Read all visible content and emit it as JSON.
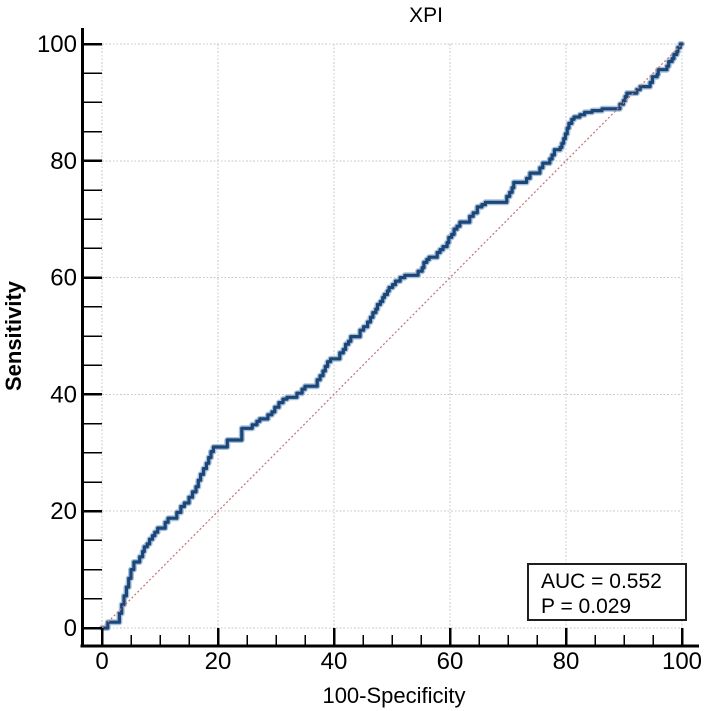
{
  "chart_data": {
    "type": "line",
    "subtype": "roc-curve",
    "title": "XPI",
    "xlabel": "100-Specificity",
    "ylabel": "Sensitivity",
    "xlim": [
      0,
      100
    ],
    "ylim": [
      0,
      100
    ],
    "x_ticks": [
      0,
      20,
      40,
      60,
      80,
      100
    ],
    "y_ticks": [
      0,
      20,
      40,
      60,
      80,
      100
    ],
    "minor_tick_interval": 5,
    "grid": true,
    "legend_position": "none",
    "auc": 0.552,
    "p_value": 0.029,
    "annotation": {
      "lines": [
        "AUC = 0.552",
        "P = 0.029"
      ]
    },
    "colors": {
      "curve": "#1b4677",
      "curve_halo": "#a9c2dc",
      "reference_line": "#c97878",
      "grid": "#c9c9c9",
      "axis": "#000000",
      "text": "#000000",
      "annotation_border": "#1f1f1f",
      "background": "#ffffff"
    },
    "series": [
      {
        "name": "ROC curve",
        "role": "roc",
        "points": [
          [
            0,
            0
          ],
          [
            1,
            0
          ],
          [
            1,
            1
          ],
          [
            3,
            1
          ],
          [
            3,
            2.5
          ],
          [
            3.4,
            2.5
          ],
          [
            3.4,
            4
          ],
          [
            3.8,
            4
          ],
          [
            3.8,
            5.5
          ],
          [
            4.2,
            5.5
          ],
          [
            4.2,
            7
          ],
          [
            4.6,
            7
          ],
          [
            4.6,
            8.5
          ],
          [
            5,
            8.5
          ],
          [
            5,
            10
          ],
          [
            5.5,
            10
          ],
          [
            5.5,
            11.3
          ],
          [
            6.5,
            11.3
          ],
          [
            6.5,
            12.2
          ],
          [
            7,
            12.2
          ],
          [
            7,
            13.1
          ],
          [
            7.3,
            13.1
          ],
          [
            7.3,
            13.9
          ],
          [
            7.8,
            13.9
          ],
          [
            7.8,
            14.4
          ],
          [
            8.2,
            14.4
          ],
          [
            8.2,
            15.2
          ],
          [
            8.7,
            15.2
          ],
          [
            8.7,
            15.8
          ],
          [
            9.1,
            15.8
          ],
          [
            9.1,
            16.4
          ],
          [
            9.6,
            16.4
          ],
          [
            9.6,
            17.1
          ],
          [
            10.9,
            17.1
          ],
          [
            10.9,
            18.1
          ],
          [
            11.4,
            18.1
          ],
          [
            11.4,
            18.8
          ],
          [
            12.9,
            18.8
          ],
          [
            12.9,
            19.8
          ],
          [
            13.6,
            19.8
          ],
          [
            13.6,
            20.8
          ],
          [
            14.2,
            20.8
          ],
          [
            14.2,
            21.4
          ],
          [
            15,
            21.4
          ],
          [
            15,
            22.4
          ],
          [
            15.6,
            22.4
          ],
          [
            15.6,
            23.3
          ],
          [
            16.2,
            23.3
          ],
          [
            16.2,
            24.2
          ],
          [
            16.6,
            24.2
          ],
          [
            16.6,
            25.3
          ],
          [
            17,
            25.3
          ],
          [
            17,
            26.3
          ],
          [
            17.5,
            26.3
          ],
          [
            17.5,
            27.3
          ],
          [
            18,
            27.3
          ],
          [
            18,
            28.2
          ],
          [
            18.4,
            28.2
          ],
          [
            18.4,
            29.2
          ],
          [
            18.8,
            29.2
          ],
          [
            18.8,
            30.2
          ],
          [
            19.2,
            30.2
          ],
          [
            19.2,
            31
          ],
          [
            21.6,
            31
          ],
          [
            21.6,
            32.2
          ],
          [
            24.1,
            32.2
          ],
          [
            24.1,
            34.2
          ],
          [
            25.9,
            34.2
          ],
          [
            25.9,
            34.8
          ],
          [
            26.7,
            34.8
          ],
          [
            26.7,
            35.4
          ],
          [
            27.2,
            35.4
          ],
          [
            27.2,
            35.8
          ],
          [
            28.6,
            35.8
          ],
          [
            28.6,
            36.5
          ],
          [
            29.3,
            36.5
          ],
          [
            29.3,
            37
          ],
          [
            29.8,
            37
          ],
          [
            29.8,
            37.8
          ],
          [
            30.5,
            37.8
          ],
          [
            30.5,
            38.6
          ],
          [
            31.2,
            38.6
          ],
          [
            31.2,
            39.2
          ],
          [
            31.9,
            39.2
          ],
          [
            31.9,
            39.5
          ],
          [
            33.6,
            39.5
          ],
          [
            33.6,
            40.2
          ],
          [
            34.5,
            40.2
          ],
          [
            34.5,
            40.9
          ],
          [
            35,
            40.9
          ],
          [
            35,
            41.4
          ],
          [
            37.1,
            41.4
          ],
          [
            37.1,
            42.5
          ],
          [
            37.6,
            42.5
          ],
          [
            37.6,
            43.2
          ],
          [
            38.1,
            43.2
          ],
          [
            38.1,
            44
          ],
          [
            38.5,
            44
          ],
          [
            38.5,
            44.8
          ],
          [
            38.9,
            44.8
          ],
          [
            38.9,
            45.6
          ],
          [
            39.4,
            45.6
          ],
          [
            39.4,
            46.1
          ],
          [
            41,
            46.1
          ],
          [
            41,
            47.1
          ],
          [
            41.6,
            47.1
          ],
          [
            41.6,
            47.7
          ],
          [
            42,
            47.7
          ],
          [
            42,
            48.6
          ],
          [
            42.5,
            48.6
          ],
          [
            42.5,
            49.1
          ],
          [
            42.9,
            49.1
          ],
          [
            42.9,
            49.9
          ],
          [
            44.5,
            49.9
          ],
          [
            44.5,
            51
          ],
          [
            45.1,
            51
          ],
          [
            45.1,
            51.6
          ],
          [
            45.8,
            51.6
          ],
          [
            45.8,
            52.4
          ],
          [
            46.3,
            52.4
          ],
          [
            46.3,
            53.2
          ],
          [
            46.7,
            53.2
          ],
          [
            46.7,
            54
          ],
          [
            47.2,
            54
          ],
          [
            47.2,
            54.6
          ],
          [
            47.5,
            54.6
          ],
          [
            47.5,
            55.4
          ],
          [
            48,
            55.4
          ],
          [
            48,
            55.9
          ],
          [
            48.4,
            55.9
          ],
          [
            48.4,
            56.6
          ],
          [
            48.7,
            56.6
          ],
          [
            48.7,
            57.1
          ],
          [
            49.2,
            57.1
          ],
          [
            49.2,
            57.7
          ],
          [
            49.5,
            57.7
          ],
          [
            49.5,
            58.3
          ],
          [
            50.1,
            58.3
          ],
          [
            50.1,
            58.8
          ],
          [
            50.6,
            58.8
          ],
          [
            50.6,
            59.4
          ],
          [
            51.4,
            59.4
          ],
          [
            51.4,
            60
          ],
          [
            52.2,
            60
          ],
          [
            52.2,
            60.4
          ],
          [
            54.5,
            60.4
          ],
          [
            54.5,
            61.1
          ],
          [
            55.2,
            61.1
          ],
          [
            55.2,
            61.7
          ],
          [
            55.5,
            61.7
          ],
          [
            55.5,
            62.6
          ],
          [
            56,
            62.6
          ],
          [
            56,
            63.1
          ],
          [
            56.4,
            63.1
          ],
          [
            56.4,
            63.5
          ],
          [
            57.8,
            63.5
          ],
          [
            57.8,
            64.3
          ],
          [
            58.3,
            64.3
          ],
          [
            58.3,
            64.8
          ],
          [
            58.8,
            64.8
          ],
          [
            58.8,
            65.3
          ],
          [
            59.5,
            65.3
          ],
          [
            59.5,
            66
          ],
          [
            59.8,
            66
          ],
          [
            59.8,
            66.9
          ],
          [
            60.3,
            66.9
          ],
          [
            60.3,
            67.4
          ],
          [
            60.7,
            67.4
          ],
          [
            60.7,
            68.3
          ],
          [
            61.2,
            68.3
          ],
          [
            61.2,
            68.8
          ],
          [
            61.7,
            68.8
          ],
          [
            61.7,
            69.5
          ],
          [
            63.4,
            69.5
          ],
          [
            63.4,
            70.5
          ],
          [
            64,
            70.5
          ],
          [
            64,
            71.1
          ],
          [
            64.7,
            71.1
          ],
          [
            64.7,
            72.1
          ],
          [
            65.5,
            72.1
          ],
          [
            65.5,
            72.5
          ],
          [
            66.1,
            72.5
          ],
          [
            66.1,
            72.9
          ],
          [
            69.8,
            72.9
          ],
          [
            69.8,
            73.9
          ],
          [
            70.3,
            73.9
          ],
          [
            70.3,
            74.6
          ],
          [
            70.7,
            74.6
          ],
          [
            70.7,
            75.4
          ],
          [
            71,
            75.4
          ],
          [
            71,
            76.3
          ],
          [
            73.2,
            76.3
          ],
          [
            73.2,
            77
          ],
          [
            73.8,
            77
          ],
          [
            73.8,
            77.9
          ],
          [
            75.5,
            77.9
          ],
          [
            75.5,
            78.8
          ],
          [
            76,
            78.8
          ],
          [
            76,
            79.6
          ],
          [
            77.2,
            79.6
          ],
          [
            77.2,
            80.3
          ],
          [
            77.6,
            80.3
          ],
          [
            77.6,
            81
          ],
          [
            78,
            81
          ],
          [
            78,
            81.9
          ],
          [
            79,
            81.9
          ],
          [
            79,
            82.3
          ],
          [
            79.3,
            82.3
          ],
          [
            79.3,
            83
          ],
          [
            79.6,
            83
          ],
          [
            79.6,
            83.8
          ],
          [
            79.9,
            83.8
          ],
          [
            79.9,
            84.6
          ],
          [
            80.2,
            84.6
          ],
          [
            80.2,
            85.6
          ],
          [
            80.5,
            85.6
          ],
          [
            80.5,
            86.4
          ],
          [
            81,
            86.4
          ],
          [
            81,
            87.1
          ],
          [
            81.4,
            87.1
          ],
          [
            81.4,
            87.5
          ],
          [
            82.4,
            87.5
          ],
          [
            82.4,
            87.9
          ],
          [
            83.2,
            87.9
          ],
          [
            83.2,
            88.3
          ],
          [
            84.5,
            88.3
          ],
          [
            84.5,
            88.6
          ],
          [
            86.2,
            88.6
          ],
          [
            86.2,
            88.9
          ],
          [
            89.3,
            88.9
          ],
          [
            89.3,
            89.7
          ],
          [
            89.9,
            89.7
          ],
          [
            89.9,
            90.3
          ],
          [
            90.2,
            90.3
          ],
          [
            90.2,
            91
          ],
          [
            90.5,
            91
          ],
          [
            90.5,
            91.6
          ],
          [
            92.2,
            91.6
          ],
          [
            92.2,
            92.2
          ],
          [
            92.8,
            92.2
          ],
          [
            92.8,
            92.7
          ],
          [
            94.5,
            92.7
          ],
          [
            94.5,
            93.4
          ],
          [
            94.9,
            93.4
          ],
          [
            94.9,
            94.4
          ],
          [
            95.7,
            94.4
          ],
          [
            95.7,
            94.8
          ],
          [
            95.9,
            94.8
          ],
          [
            95.9,
            95.6
          ],
          [
            97.4,
            95.6
          ],
          [
            97.4,
            96.2
          ],
          [
            97.7,
            96.2
          ],
          [
            97.7,
            97
          ],
          [
            98.3,
            97
          ],
          [
            98.3,
            97.5
          ],
          [
            98.6,
            97.5
          ],
          [
            98.6,
            98.2
          ],
          [
            99.1,
            98.2
          ],
          [
            99.1,
            98.7
          ],
          [
            99.3,
            98.7
          ],
          [
            99.3,
            99.4
          ],
          [
            99.7,
            99.4
          ],
          [
            99.7,
            100
          ],
          [
            100,
            100
          ]
        ]
      },
      {
        "name": "reference diagonal",
        "role": "reference",
        "points": [
          [
            0,
            0
          ],
          [
            100,
            100
          ]
        ]
      }
    ]
  }
}
